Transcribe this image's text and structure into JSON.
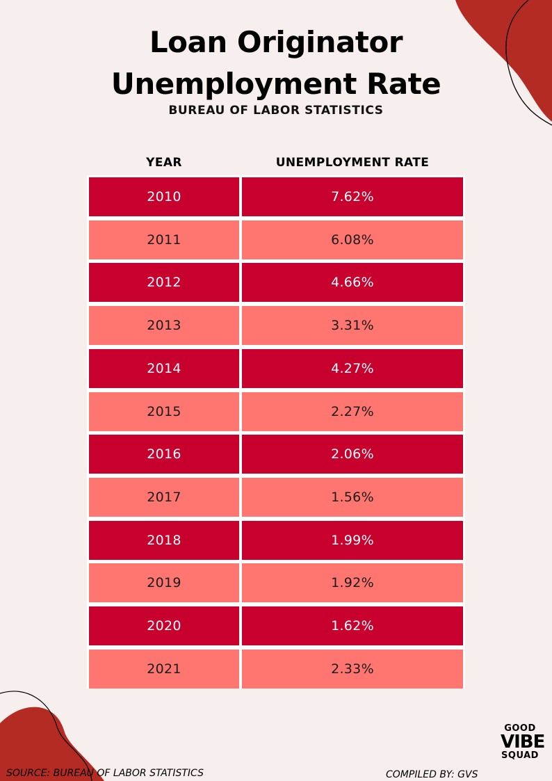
{
  "title_line1": "Loan Originator",
  "title_line2": "Unemployment Rate",
  "subtitle": "BUREAU OF LABOR STATISTICS",
  "colors": {
    "dark_row": "#c8002e",
    "light_row": "#ff7570",
    "background": "#f7efed",
    "blob": "#b32b22"
  },
  "chart_data": {
    "type": "table",
    "columns": [
      "YEAR",
      "UNEMPLOYMENT RATE"
    ],
    "rows": [
      [
        "2010",
        "7.62%"
      ],
      [
        "2011",
        "6.08%"
      ],
      [
        "2012",
        "4.66%"
      ],
      [
        "2013",
        "3.31%"
      ],
      [
        "2014",
        "4.27%"
      ],
      [
        "2015",
        "2.27%"
      ],
      [
        "2016",
        "2.06%"
      ],
      [
        "2017",
        "1.56%"
      ],
      [
        "2018",
        "1.99%"
      ],
      [
        "2019",
        "1.92%"
      ],
      [
        "2020",
        "1.62%"
      ],
      [
        "2021",
        "2.33%"
      ]
    ]
  },
  "footer": {
    "source": "SOURCE: BUREAU OF LABOR STATISTICS",
    "compiled": "COMPILED BY: GVS"
  },
  "logo": {
    "line1": "GOOD",
    "line2": "VIBE",
    "line3": "SQUAD"
  }
}
